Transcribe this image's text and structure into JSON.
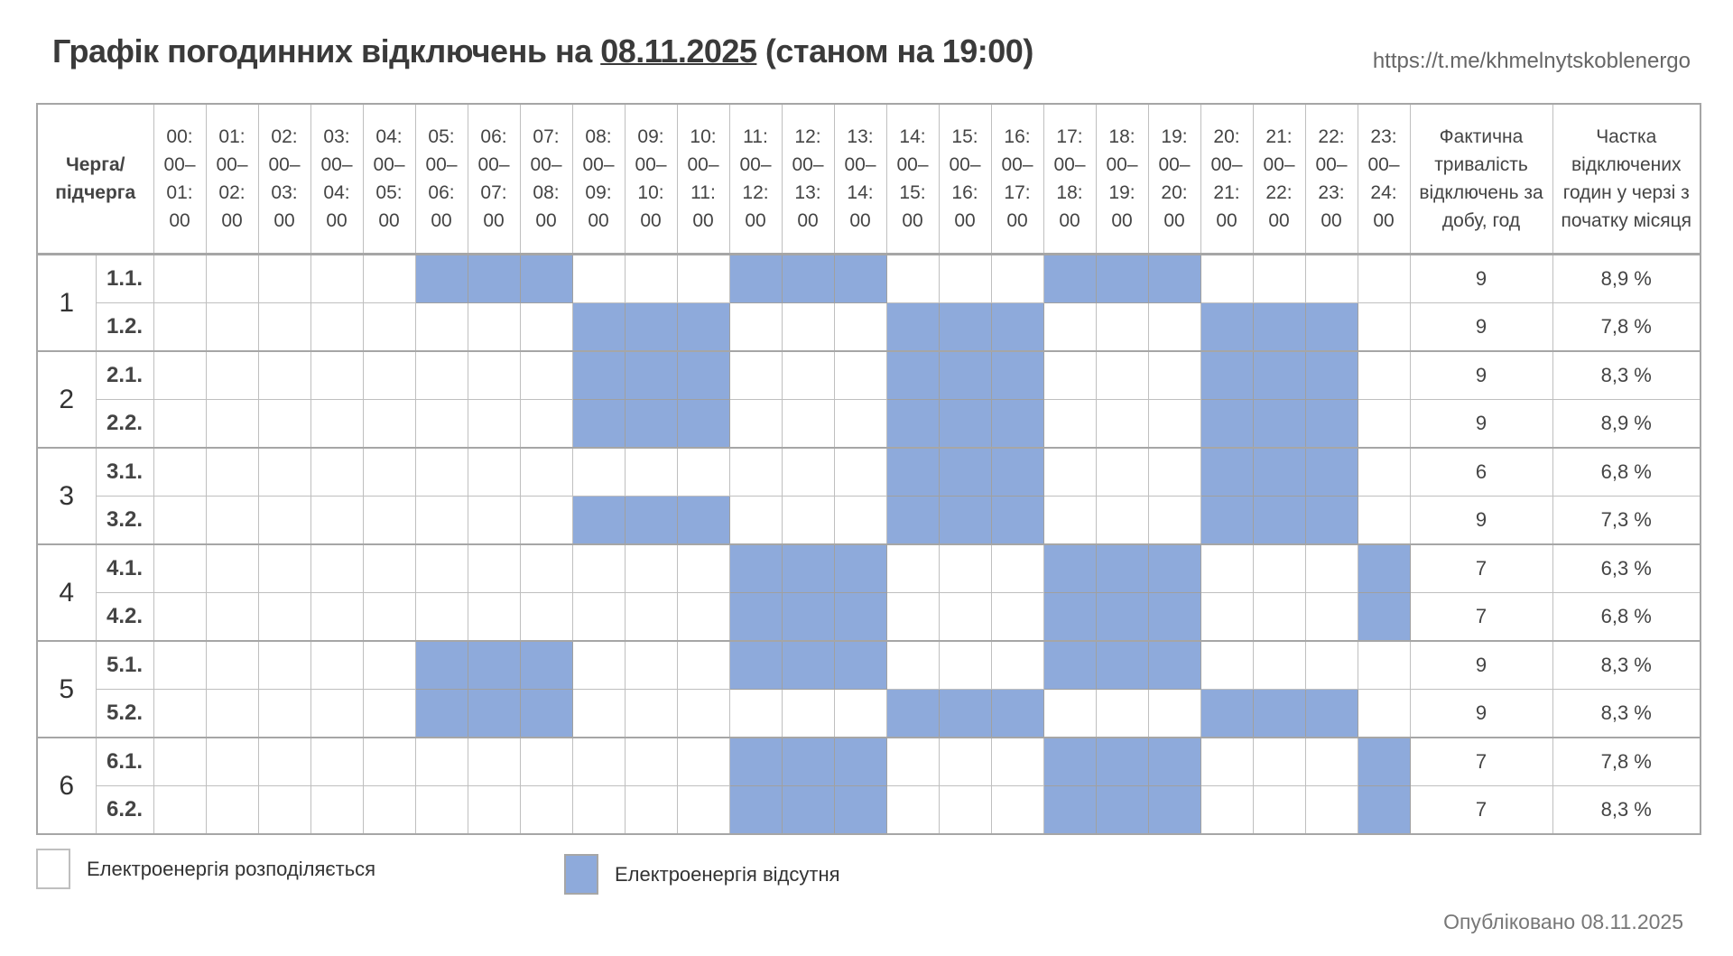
{
  "header": {
    "title_prefix": "Графік погодинних відключень на ",
    "title_date": "08.11.2025",
    "title_suffix": " (станом на 19:00)",
    "url": "https://t.me/khmelnytskoblenergo"
  },
  "table": {
    "queue_header": "Черга/ підчерга",
    "hours": [
      "00:00–01:00",
      "01:00–02:00",
      "02:00–03:00",
      "03:00–04:00",
      "04:00–05:00",
      "05:00–06:00",
      "06:00–07:00",
      "07:00–08:00",
      "08:00–09:00",
      "09:00–10:00",
      "10:00–11:00",
      "11:00–12:00",
      "12:00–13:00",
      "13:00–14:00",
      "14:00–15:00",
      "15:00–16:00",
      "16:00–17:00",
      "17:00–18:00",
      "18:00–19:00",
      "19:00–20:00",
      "20:00–21:00",
      "21:00–22:00",
      "22:00–23:00",
      "23:00–24:00"
    ],
    "duration_header": "Фактична тривалість відключень за добу, год",
    "share_header": "Частка відключених годин у черзі з початку місяця",
    "queues": [
      {
        "queue": "1",
        "subqueues": [
          {
            "label": "1.1.",
            "off_hours": [
              5,
              6,
              7,
              11,
              12,
              13,
              17,
              18,
              19
            ],
            "duration": "9",
            "share": "8,9 %"
          },
          {
            "label": "1.2.",
            "off_hours": [
              8,
              9,
              10,
              14,
              15,
              16,
              20,
              21,
              22
            ],
            "duration": "9",
            "share": "7,8 %"
          }
        ]
      },
      {
        "queue": "2",
        "subqueues": [
          {
            "label": "2.1.",
            "off_hours": [
              8,
              9,
              10,
              14,
              15,
              16,
              20,
              21,
              22
            ],
            "duration": "9",
            "share": "8,3 %"
          },
          {
            "label": "2.2.",
            "off_hours": [
              8,
              9,
              10,
              14,
              15,
              16,
              20,
              21,
              22
            ],
            "duration": "9",
            "share": "8,9 %"
          }
        ]
      },
      {
        "queue": "3",
        "subqueues": [
          {
            "label": "3.1.",
            "off_hours": [
              14,
              15,
              16,
              20,
              21,
              22
            ],
            "duration": "6",
            "share": "6,8 %"
          },
          {
            "label": "3.2.",
            "off_hours": [
              8,
              9,
              10,
              14,
              15,
              16,
              20,
              21,
              22
            ],
            "duration": "9",
            "share": "7,3 %"
          }
        ]
      },
      {
        "queue": "4",
        "subqueues": [
          {
            "label": "4.1.",
            "off_hours": [
              11,
              12,
              13,
              17,
              18,
              19,
              23
            ],
            "duration": "7",
            "share": "6,3 %"
          },
          {
            "label": "4.2.",
            "off_hours": [
              11,
              12,
              13,
              17,
              18,
              19,
              23
            ],
            "duration": "7",
            "share": "6,8 %"
          }
        ]
      },
      {
        "queue": "5",
        "subqueues": [
          {
            "label": "5.1.",
            "off_hours": [
              5,
              6,
              7,
              11,
              12,
              13,
              17,
              18,
              19
            ],
            "duration": "9",
            "share": "8,3 %"
          },
          {
            "label": "5.2.",
            "off_hours": [
              5,
              6,
              7,
              14,
              15,
              16,
              20,
              21,
              22
            ],
            "duration": "9",
            "share": "8,3 %"
          }
        ]
      },
      {
        "queue": "6",
        "subqueues": [
          {
            "label": "6.1.",
            "off_hours": [
              11,
              12,
              13,
              17,
              18,
              19,
              23
            ],
            "duration": "7",
            "share": "7,8 %"
          },
          {
            "label": "6.2.",
            "off_hours": [
              11,
              12,
              13,
              17,
              18,
              19,
              23
            ],
            "duration": "7",
            "share": "8,3 %"
          }
        ]
      }
    ]
  },
  "legend": {
    "on_label": "Електроенергія розподіляється",
    "off_label": "Електроенергія відсутня",
    "on_color": "#ffffff",
    "off_color": "#8eaadb"
  },
  "footer": {
    "published": "Опубліковано 08.11.2025"
  }
}
